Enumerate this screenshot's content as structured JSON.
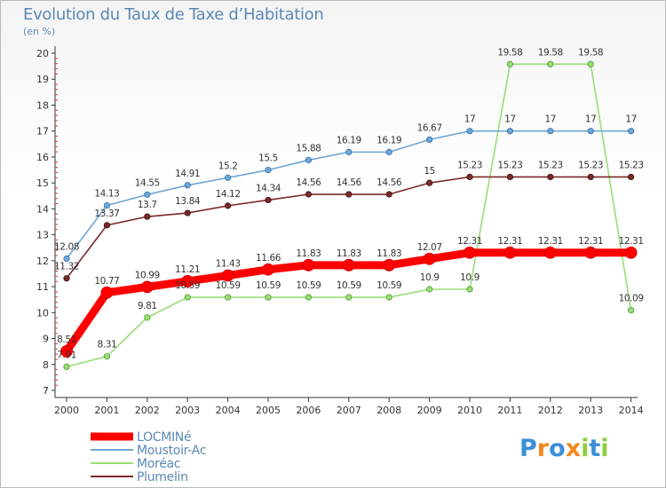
{
  "chart_data": {
    "type": "line",
    "title": "Evolution du Taux de Taxe d’Habitation",
    "subtitle": "(en %)",
    "xlabel": "",
    "ylabel": "",
    "x": [
      "2000",
      "2001",
      "2002",
      "2003",
      "2004",
      "2005",
      "2006",
      "2007",
      "2008",
      "2009",
      "2010",
      "2011",
      "2012",
      "2013",
      "2014"
    ],
    "ylim": [
      7,
      20
    ],
    "yticks": [
      "7",
      "8",
      "9",
      "10",
      "11",
      "12",
      "13",
      "14",
      "15",
      "16",
      "17",
      "18",
      "19",
      "20"
    ],
    "grid": false,
    "legend": "bottom-left",
    "series": [
      {
        "name": "LOCMINé",
        "color": "#ff0000",
        "values": [
          8.51,
          10.77,
          10.99,
          11.21,
          11.43,
          11.66,
          11.83,
          11.83,
          11.83,
          12.07,
          12.31,
          12.31,
          12.31,
          12.31,
          12.31
        ],
        "labels": [
          "8.51",
          "10.77",
          "10.99",
          "11.21",
          "11.43",
          "11.66",
          "11.83",
          "11.83",
          "11.83",
          "12.07",
          "12.31",
          "12.31",
          "12.31",
          "12.31",
          "12.31"
        ]
      },
      {
        "name": "Moustoir-Ac",
        "color": "#6fa6d5",
        "values": [
          12.08,
          14.13,
          14.55,
          14.91,
          15.2,
          15.5,
          15.88,
          16.19,
          16.19,
          16.67,
          17,
          17,
          17,
          17,
          17
        ],
        "labels": [
          "12.08",
          "14.13",
          "14.55",
          "14.91",
          "15.2",
          "15.5",
          "15.88",
          "16.19",
          "16.19",
          "16.67",
          "17",
          "17",
          "17",
          "17",
          "17"
        ]
      },
      {
        "name": "Moréac",
        "color": "#99dd77",
        "values": [
          7.91,
          8.31,
          9.81,
          10.59,
          10.59,
          10.59,
          10.59,
          10.59,
          10.59,
          10.9,
          10.9,
          19.58,
          19.58,
          19.58,
          10.09
        ],
        "labels": [
          "7.91",
          "8.31",
          "9.81",
          "10.59",
          "10.59",
          "10.59",
          "10.59",
          "10.59",
          "10.59",
          "10.9",
          "10.9",
          "19.58",
          "19.58",
          "19.58",
          "10.09"
        ]
      },
      {
        "name": "Plumelin",
        "color": "#7a2a2a",
        "values": [
          11.32,
          13.37,
          13.7,
          13.84,
          14.12,
          14.34,
          14.56,
          14.56,
          14.56,
          15,
          15.23,
          15.23,
          15.23,
          15.23,
          15.23
        ],
        "labels": [
          "11.32",
          "13.37",
          "13.7",
          "13.84",
          "14.12",
          "14.34",
          "14.56",
          "14.56",
          "14.56",
          "15",
          "15.23",
          "15.23",
          "15.23",
          "15.23",
          "15.23"
        ]
      }
    ]
  },
  "logo": {
    "text": "Proxiti",
    "letter_colors": [
      "#3b8fd8",
      "#f28a1e",
      "#3b8fd8",
      "#f28a1e",
      "#8ccf3e",
      "#3b8fd8",
      "#8ccf3e"
    ]
  }
}
